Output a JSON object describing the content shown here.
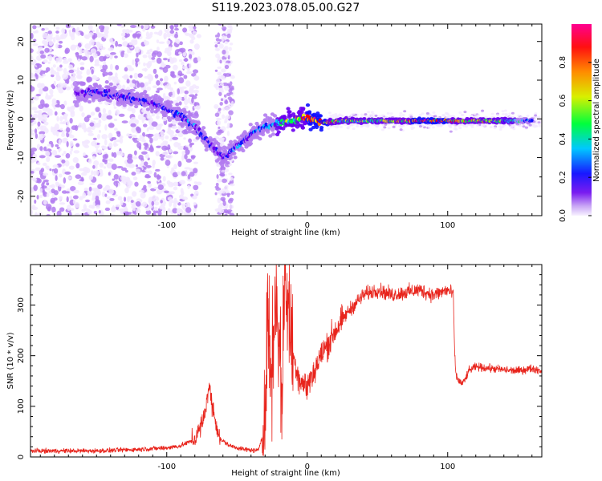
{
  "title": "S119.2023.078.05.00.G27",
  "chart_data": [
    {
      "type": "heatmap",
      "xlabel": "Height of straight line (km)",
      "ylabel": "Frequency (Hz)",
      "xlim": [
        -197,
        167
      ],
      "ylim": [
        -25,
        24.5
      ],
      "xticks": [
        -100,
        0,
        100
      ],
      "yticks": [
        -20,
        -10,
        0,
        10,
        20
      ],
      "colorbar": {
        "label": "Normalized spectral amplitude",
        "range": [
          0,
          1
        ],
        "ticks": [
          0.0,
          0.2,
          0.4,
          0.6,
          0.8
        ],
        "tick_labels": [
          "0.0",
          "0.2",
          "0.4",
          "0.6",
          "0.8"
        ],
        "colors": [
          "#f2e8ff",
          "#b27cf0",
          "#6a00f0",
          "#1010ff",
          "#00c8ff",
          "#00ff40",
          "#e8f000",
          "#ff8000",
          "#ff0000",
          "#ff0090"
        ]
      },
      "ridge": {
        "description_points": [
          {
            "x": -165,
            "y": 6.5,
            "amp": 0.2
          },
          {
            "x": -150,
            "y": 7,
            "amp": 0.3
          },
          {
            "x": -135,
            "y": 6,
            "amp": 0.25
          },
          {
            "x": -120,
            "y": 5,
            "amp": 0.3
          },
          {
            "x": -105,
            "y": 3.5,
            "amp": 0.3
          },
          {
            "x": -90,
            "y": 1,
            "amp": 0.35
          },
          {
            "x": -80,
            "y": -2,
            "amp": 0.35
          },
          {
            "x": -70,
            "y": -6,
            "amp": 0.3
          },
          {
            "x": -60,
            "y": -10,
            "amp": 0.3
          },
          {
            "x": -50,
            "y": -7,
            "amp": 0.35
          },
          {
            "x": -40,
            "y": -4,
            "amp": 0.35
          },
          {
            "x": -30,
            "y": -2,
            "amp": 0.4
          },
          {
            "x": -20,
            "y": -1,
            "amp": 0.5
          },
          {
            "x": -10,
            "y": -0.5,
            "amp": 0.6
          },
          {
            "x": 0,
            "y": 0.5,
            "amp": 0.8
          },
          {
            "x": 10,
            "y": -1,
            "amp": 0.9
          },
          {
            "x": 25,
            "y": -0.5,
            "amp": 0.55
          },
          {
            "x": 50,
            "y": -0.5,
            "amp": 0.55
          },
          {
            "x": 80,
            "y": -0.5,
            "amp": 0.85
          },
          {
            "x": 100,
            "y": -0.5,
            "amp": 0.8
          },
          {
            "x": 130,
            "y": -0.5,
            "amp": 0.6
          },
          {
            "x": 160,
            "y": -0.5,
            "amp": 0.4
          }
        ]
      }
    },
    {
      "type": "line",
      "xlabel": "Height of straight line (km)",
      "ylabel": "SNR (10 * v/v)",
      "xlim": [
        -197,
        167
      ],
      "ylim": [
        0,
        380
      ],
      "xticks": [
        -100,
        0,
        100
      ],
      "yticks": [
        0,
        100,
        200,
        300
      ],
      "series": [
        {
          "color": "#e8241c",
          "x": [
            -197,
            -150,
            -120,
            -100,
            -90,
            -80,
            -74,
            -70,
            -66,
            -62,
            -55,
            -45,
            -35,
            -30,
            -28,
            -26,
            -22,
            -18,
            -16,
            -10,
            -5,
            0,
            10,
            20,
            30,
            40,
            50,
            60,
            70,
            80,
            90,
            100,
            104,
            105,
            106,
            108,
            110,
            112,
            115,
            120,
            130,
            140,
            150,
            160,
            167
          ],
          "y": [
            12,
            12,
            15,
            18,
            22,
            35,
            70,
            140,
            80,
            35,
            22,
            15,
            12,
            60,
            300,
            150,
            330,
            120,
            360,
            200,
            150,
            140,
            200,
            250,
            290,
            320,
            330,
            320,
            325,
            330,
            320,
            330,
            320,
            200,
            160,
            150,
            145,
            150,
            170,
            178,
            175,
            172,
            170,
            175,
            170
          ]
        }
      ]
    }
  ]
}
